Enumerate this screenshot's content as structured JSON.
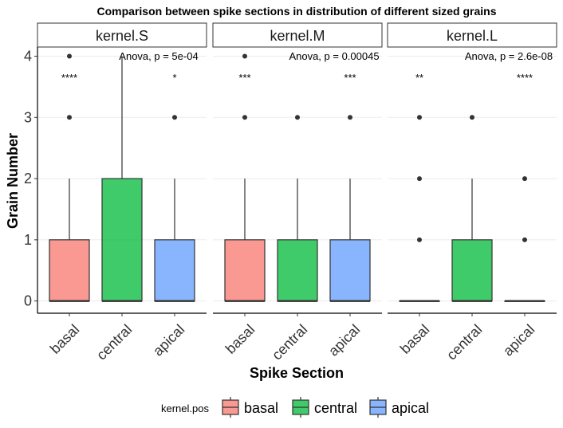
{
  "chart_data": {
    "type": "boxplot",
    "title": "Comparison between spike sections in distribution of different sized grains",
    "xlabel": "Spike Section",
    "ylabel": "Grain Number",
    "ylim": [
      -0.2,
      4.15
    ],
    "yticks": [
      "0",
      "1",
      "2",
      "3",
      "4"
    ],
    "categories": [
      "basal",
      "central",
      "apical"
    ],
    "colors": {
      "basal": "#F8766D",
      "central": "#00BA38",
      "apical": "#619CFF"
    },
    "legend": {
      "title": "kernel.pos",
      "position": "bottom",
      "entries": [
        "basal",
        "central",
        "apical"
      ]
    },
    "grid": "horizontal major",
    "panels": [
      {
        "name": "kernel.S",
        "anova": "Anova, p = 5e-04",
        "boxes": [
          {
            "category": "basal",
            "q1": 0,
            "median": 0,
            "q3": 1,
            "whisker_low": 0,
            "whisker_high": 2,
            "outliers": [
              3,
              4
            ],
            "signif": "****"
          },
          {
            "category": "central",
            "q1": 0,
            "median": 0,
            "q3": 2,
            "whisker_low": 0,
            "whisker_high": 4,
            "outliers": [],
            "signif": ""
          },
          {
            "category": "apical",
            "q1": 0,
            "median": 0,
            "q3": 1,
            "whisker_low": 0,
            "whisker_high": 2,
            "outliers": [
              3
            ],
            "signif": "*"
          }
        ]
      },
      {
        "name": "kernel.M",
        "anova": "Anova, p = 0.00045",
        "boxes": [
          {
            "category": "basal",
            "q1": 0,
            "median": 0,
            "q3": 1,
            "whisker_low": 0,
            "whisker_high": 2,
            "outliers": [
              3,
              4
            ],
            "signif": "***"
          },
          {
            "category": "central",
            "q1": 0,
            "median": 0,
            "q3": 1,
            "whisker_low": 0,
            "whisker_high": 2,
            "outliers": [
              3
            ],
            "signif": ""
          },
          {
            "category": "apical",
            "q1": 0,
            "median": 0,
            "q3": 1,
            "whisker_low": 0,
            "whisker_high": 2,
            "outliers": [
              3
            ],
            "signif": "***"
          }
        ]
      },
      {
        "name": "kernel.L",
        "anova": "Anova, p = 2.6e-08",
        "boxes": [
          {
            "category": "basal",
            "q1": 0,
            "median": 0,
            "q3": 0,
            "whisker_low": 0,
            "whisker_high": 0,
            "outliers": [
              1,
              2,
              3
            ],
            "signif": "**"
          },
          {
            "category": "central",
            "q1": 0,
            "median": 0,
            "q3": 1,
            "whisker_low": 0,
            "whisker_high": 2,
            "outliers": [
              3
            ],
            "signif": ""
          },
          {
            "category": "apical",
            "q1": 0,
            "median": 0,
            "q3": 0,
            "whisker_low": 0,
            "whisker_high": 0,
            "outliers": [
              1,
              2
            ],
            "signif": "****"
          }
        ]
      }
    ]
  }
}
